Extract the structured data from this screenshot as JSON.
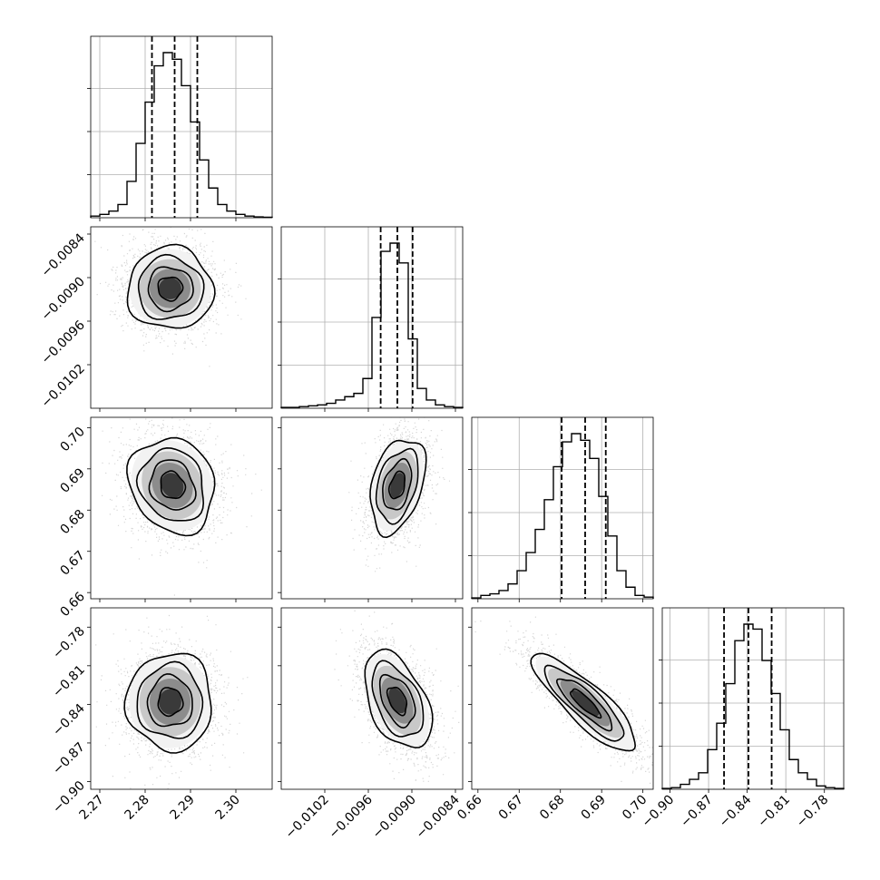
{
  "chart_data": {
    "type": "corner",
    "params": [
      {
        "range": [
          2.268,
          2.308
        ],
        "ticks": [
          2.27,
          2.28,
          2.29,
          2.3
        ],
        "tick_labels": [
          "2.27",
          "2.28",
          "2.29",
          "2.30"
        ],
        "quantiles": [
          2.2815,
          2.2865,
          2.2915
        ],
        "hist": [
          1,
          2,
          4,
          8,
          22,
          45,
          70,
          92,
          100,
          96,
          80,
          58,
          35,
          18,
          8,
          4,
          2,
          1,
          0.5,
          0.3
        ]
      },
      {
        "range": [
          -0.0108,
          -0.0083
        ],
        "ticks": [
          -0.0102,
          -0.0096,
          -0.009,
          -0.0084
        ],
        "tick_labels": [
          "−0.0102",
          "−0.0096",
          "−0.0090",
          "−0.0084"
        ],
        "quantiles": [
          -0.00943,
          -0.0092,
          -0.00899
        ],
        "hist": [
          0.5,
          0.5,
          1,
          1.5,
          2,
          3,
          5,
          7,
          9,
          18,
          55,
          95,
          100,
          88,
          42,
          12,
          5,
          2,
          1,
          0.5
        ]
      },
      {
        "range": [
          0.6585,
          0.7025
        ],
        "ticks": [
          0.66,
          0.67,
          0.68,
          0.69,
          0.7
        ],
        "tick_labels": [
          "0.66",
          "0.67",
          "0.68",
          "0.69",
          "0.70"
        ],
        "quantiles": [
          0.6803,
          0.686,
          0.691
        ],
        "hist": [
          0.5,
          2,
          3,
          5,
          9,
          17,
          28,
          42,
          60,
          80,
          95,
          100,
          96,
          85,
          62,
          38,
          17,
          7,
          2,
          1
        ]
      },
      {
        "range": [
          -0.906,
          -0.765
        ],
        "ticks": [
          -0.9,
          -0.87,
          -0.84,
          -0.81,
          -0.78
        ],
        "tick_labels": [
          "−0.90",
          "−0.87",
          "−0.84",
          "−0.81",
          "−0.78"
        ],
        "quantiles": [
          -0.858,
          -0.839,
          -0.821
        ],
        "hist": [
          0.5,
          1,
          3,
          6,
          10,
          24,
          40,
          64,
          90,
          100,
          97,
          78,
          58,
          36,
          18,
          10,
          6,
          2,
          1,
          0.5
        ]
      }
    ],
    "pairs": [
      {
        "x": 0,
        "y": 1,
        "cx": 2.2855,
        "cy": -0.00915,
        "sx": 0.0045,
        "sy": 0.00027,
        "rho": 0.0
      },
      {
        "x": 0,
        "y": 2,
        "cx": 2.286,
        "cy": 0.686,
        "sx": 0.0045,
        "sy": 0.0055,
        "rho": -0.15
      },
      {
        "x": 1,
        "y": 2,
        "cx": -0.0092,
        "cy": 0.686,
        "sx": 0.00018,
        "sy": 0.0055,
        "rho": 0.35
      },
      {
        "x": 0,
        "y": 3,
        "cx": 2.2855,
        "cy": -0.838,
        "sx": 0.0045,
        "sy": 0.018,
        "rho": 0.0
      },
      {
        "x": 1,
        "y": 3,
        "cx": -0.0092,
        "cy": -0.837,
        "sx": 0.00022,
        "sy": 0.018,
        "rho": -0.45
      },
      {
        "x": 2,
        "y": 3,
        "cx": 0.686,
        "cy": -0.839,
        "sx": 0.006,
        "sy": 0.018,
        "rho": -0.85
      }
    ],
    "grid": true,
    "quantile_lines": "dashed",
    "contour_levels": [
      0.5,
      1.0,
      1.5,
      2.0
    ]
  }
}
